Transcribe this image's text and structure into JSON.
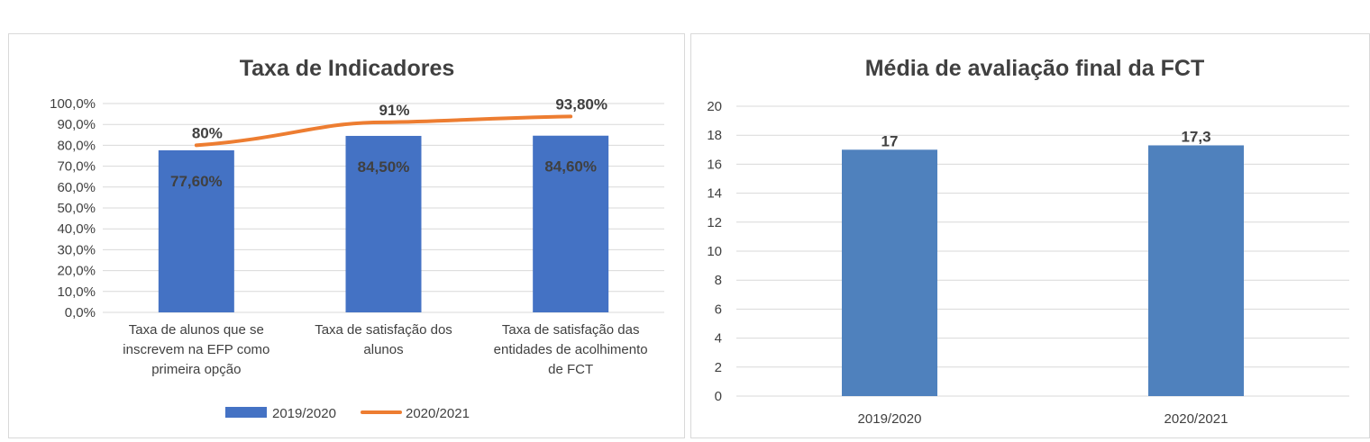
{
  "chart_data": [
    {
      "type": "bar",
      "title": "Taxa de Indicadores",
      "categories": [
        [
          "Taxa de alunos que se",
          "inscrevem na EFP como",
          "primeira opção"
        ],
        [
          "Taxa de satisfação dos",
          "alunos"
        ],
        [
          "Taxa de satisfação das",
          "entidades de acolhimento",
          "de FCT"
        ]
      ],
      "series": [
        {
          "name": "2019/2020",
          "kind": "bar",
          "color": "#4472C4",
          "values": [
            77.6,
            84.5,
            84.6
          ],
          "labels": [
            "77,60%",
            "84,50%",
            "84,60%"
          ]
        },
        {
          "name": "2020/2021",
          "kind": "line",
          "color": "#ED7D31",
          "values": [
            80,
            91,
            93.8
          ],
          "labels": [
            "80%",
            "91%",
            "93,80%"
          ]
        }
      ],
      "ylim": [
        0,
        100
      ],
      "yticks": [
        "0,0%",
        "10,0%",
        "20,0%",
        "30,0%",
        "40,0%",
        "50,0%",
        "60,0%",
        "70,0%",
        "80,0%",
        "90,0%",
        "100,0%"
      ],
      "grid": true,
      "legend": "bottom"
    },
    {
      "type": "bar",
      "title": "Média de avaliação final da FCT",
      "categories": [
        "2019/2020",
        "2020/2021"
      ],
      "series": [
        {
          "color": "#4F81BD",
          "values": [
            17,
            17.3
          ],
          "labels": [
            "17",
            "17,3"
          ]
        }
      ],
      "ylim": [
        0,
        20
      ],
      "yticks": [
        "0",
        "2",
        "4",
        "6",
        "8",
        "10",
        "12",
        "14",
        "16",
        "18",
        "20"
      ],
      "grid": true,
      "legend": "none"
    }
  ]
}
